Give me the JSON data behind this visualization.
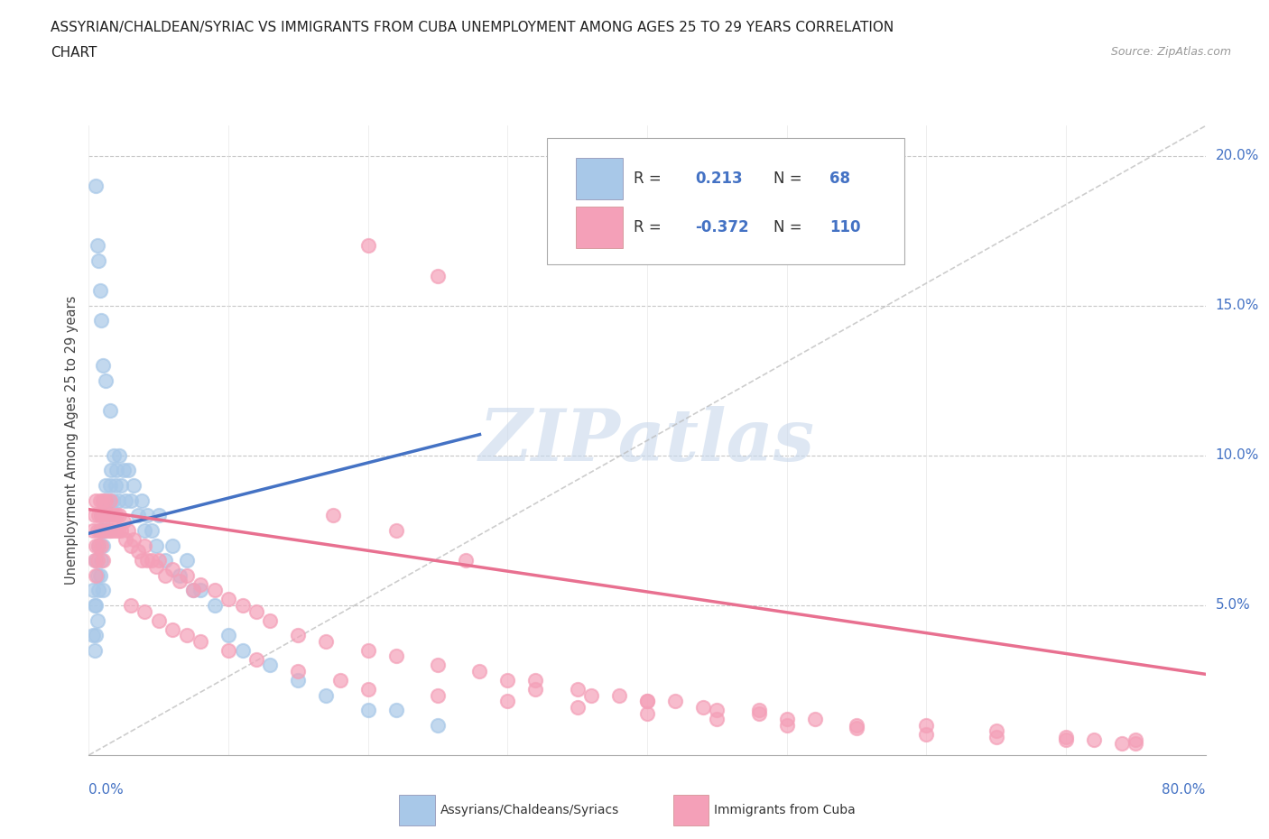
{
  "title_line1": "ASSYRIAN/CHALDEAN/SYRIAC VS IMMIGRANTS FROM CUBA UNEMPLOYMENT AMONG AGES 25 TO 29 YEARS CORRELATION",
  "title_line2": "CHART",
  "source": "Source: ZipAtlas.com",
  "ylabel": "Unemployment Among Ages 25 to 29 years",
  "legend_blue_r": "0.213",
  "legend_blue_n": "68",
  "legend_pink_r": "-0.372",
  "legend_pink_n": "110",
  "blue_color": "#a8c8e8",
  "pink_color": "#f4a0b8",
  "blue_line_color": "#4472c4",
  "pink_line_color": "#e87090",
  "watermark_color": "#c8d8ec",
  "blue_scatter_x": [
    0.003,
    0.003,
    0.004,
    0.004,
    0.005,
    0.005,
    0.005,
    0.006,
    0.006,
    0.007,
    0.007,
    0.008,
    0.008,
    0.009,
    0.009,
    0.01,
    0.01,
    0.01,
    0.011,
    0.012,
    0.012,
    0.013,
    0.014,
    0.015,
    0.015,
    0.016,
    0.017,
    0.018,
    0.019,
    0.02,
    0.021,
    0.022,
    0.023,
    0.025,
    0.026,
    0.028,
    0.03,
    0.032,
    0.035,
    0.038,
    0.04,
    0.042,
    0.045,
    0.048,
    0.05,
    0.055,
    0.06,
    0.065,
    0.07,
    0.075,
    0.08,
    0.09,
    0.1,
    0.11,
    0.13,
    0.15,
    0.17,
    0.2,
    0.22,
    0.25,
    0.005,
    0.006,
    0.007,
    0.008,
    0.009,
    0.01,
    0.012,
    0.015
  ],
  "blue_scatter_y": [
    0.055,
    0.04,
    0.05,
    0.035,
    0.065,
    0.05,
    0.04,
    0.06,
    0.045,
    0.07,
    0.055,
    0.075,
    0.06,
    0.08,
    0.065,
    0.085,
    0.07,
    0.055,
    0.075,
    0.09,
    0.075,
    0.08,
    0.085,
    0.09,
    0.075,
    0.095,
    0.085,
    0.1,
    0.09,
    0.095,
    0.085,
    0.1,
    0.09,
    0.095,
    0.085,
    0.095,
    0.085,
    0.09,
    0.08,
    0.085,
    0.075,
    0.08,
    0.075,
    0.07,
    0.08,
    0.065,
    0.07,
    0.06,
    0.065,
    0.055,
    0.055,
    0.05,
    0.04,
    0.035,
    0.03,
    0.025,
    0.02,
    0.015,
    0.015,
    0.01,
    0.19,
    0.17,
    0.165,
    0.155,
    0.145,
    0.13,
    0.125,
    0.115
  ],
  "pink_scatter_x": [
    0.003,
    0.004,
    0.004,
    0.005,
    0.005,
    0.005,
    0.006,
    0.006,
    0.007,
    0.007,
    0.008,
    0.008,
    0.009,
    0.009,
    0.01,
    0.01,
    0.01,
    0.011,
    0.012,
    0.012,
    0.013,
    0.014,
    0.015,
    0.015,
    0.016,
    0.017,
    0.018,
    0.019,
    0.02,
    0.021,
    0.022,
    0.023,
    0.025,
    0.026,
    0.028,
    0.03,
    0.032,
    0.035,
    0.038,
    0.04,
    0.042,
    0.045,
    0.048,
    0.05,
    0.055,
    0.06,
    0.065,
    0.07,
    0.075,
    0.08,
    0.09,
    0.1,
    0.11,
    0.12,
    0.13,
    0.15,
    0.17,
    0.2,
    0.22,
    0.25,
    0.28,
    0.3,
    0.32,
    0.35,
    0.38,
    0.4,
    0.42,
    0.45,
    0.48,
    0.5,
    0.55,
    0.6,
    0.65,
    0.7,
    0.75,
    0.03,
    0.04,
    0.05,
    0.06,
    0.07,
    0.08,
    0.1,
    0.12,
    0.15,
    0.18,
    0.2,
    0.25,
    0.3,
    0.35,
    0.4,
    0.45,
    0.5,
    0.55,
    0.6,
    0.65,
    0.7,
    0.72,
    0.74,
    0.75,
    0.32,
    0.36,
    0.4,
    0.44,
    0.48,
    0.52,
    0.2,
    0.25,
    0.175,
    0.22,
    0.27
  ],
  "pink_scatter_y": [
    0.075,
    0.08,
    0.065,
    0.085,
    0.07,
    0.06,
    0.075,
    0.065,
    0.08,
    0.07,
    0.085,
    0.075,
    0.08,
    0.07,
    0.085,
    0.075,
    0.065,
    0.08,
    0.085,
    0.075,
    0.08,
    0.075,
    0.085,
    0.075,
    0.08,
    0.075,
    0.08,
    0.075,
    0.08,
    0.075,
    0.08,
    0.075,
    0.078,
    0.072,
    0.075,
    0.07,
    0.072,
    0.068,
    0.065,
    0.07,
    0.065,
    0.065,
    0.063,
    0.065,
    0.06,
    0.062,
    0.058,
    0.06,
    0.055,
    0.057,
    0.055,
    0.052,
    0.05,
    0.048,
    0.045,
    0.04,
    0.038,
    0.035,
    0.033,
    0.03,
    0.028,
    0.025,
    0.025,
    0.022,
    0.02,
    0.018,
    0.018,
    0.015,
    0.015,
    0.012,
    0.01,
    0.01,
    0.008,
    0.006,
    0.005,
    0.05,
    0.048,
    0.045,
    0.042,
    0.04,
    0.038,
    0.035,
    0.032,
    0.028,
    0.025,
    0.022,
    0.02,
    0.018,
    0.016,
    0.014,
    0.012,
    0.01,
    0.009,
    0.007,
    0.006,
    0.005,
    0.005,
    0.004,
    0.004,
    0.022,
    0.02,
    0.018,
    0.016,
    0.014,
    0.012,
    0.17,
    0.16,
    0.08,
    0.075,
    0.065
  ]
}
